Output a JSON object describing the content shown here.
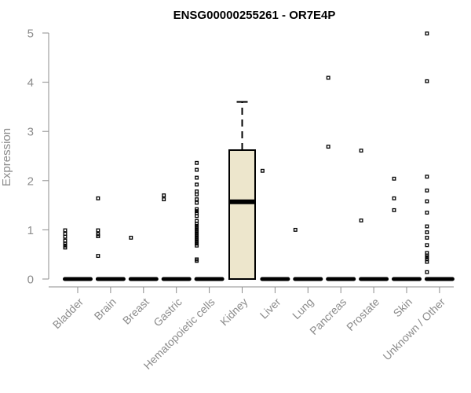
{
  "chart_data": {
    "type": "box",
    "title": "ENSG00000255261 - OR7E4P",
    "ylabel": "Expression",
    "xlabel": "",
    "ylim": [
      0,
      5
    ],
    "yticks": [
      "0",
      "1",
      "2",
      "3",
      "4",
      "5"
    ],
    "grid": false,
    "legend": "none",
    "box_fill": "#ede6cc",
    "categories": [
      "Bladder",
      "Brain",
      "Breast",
      "Gastric",
      "Hematopoietic cells",
      "Kidney",
      "Liver",
      "Lung",
      "Pancreas",
      "Prostate",
      "Skin",
      "Unknown / Other"
    ],
    "boxes": [
      {
        "name": "Bladder",
        "q1": 0,
        "median": 0,
        "q3": 0,
        "whisker_low": 0,
        "whisker_high": 0,
        "outliers": [
          0.64,
          0.68,
          0.72,
          0.78,
          0.86,
          0.92,
          0.99
        ]
      },
      {
        "name": "Brain",
        "q1": 0,
        "median": 0,
        "q3": 0,
        "whisker_low": 0,
        "whisker_high": 0,
        "outliers": [
          0.47,
          0.87,
          0.91,
          0.99,
          1.64
        ]
      },
      {
        "name": "Breast",
        "q1": 0,
        "median": 0,
        "q3": 0,
        "whisker_low": 0,
        "whisker_high": 0,
        "outliers": [
          0.84
        ]
      },
      {
        "name": "Gastric",
        "q1": 0,
        "median": 0,
        "q3": 0,
        "whisker_low": 0,
        "whisker_high": 0,
        "outliers": [
          1.62,
          1.7
        ]
      },
      {
        "name": "Hematopoietic cells",
        "q1": 0,
        "median": 0,
        "q3": 0,
        "whisker_low": 0,
        "whisker_high": 0,
        "outliers": [
          0.37,
          0.4,
          0.68,
          0.72,
          0.76,
          0.8,
          0.84,
          0.88,
          0.92,
          0.96,
          1.0,
          1.04,
          1.08,
          1.12,
          1.18,
          1.28,
          1.34,
          1.38,
          1.42,
          1.55,
          1.62,
          1.72,
          1.78,
          1.92,
          2.06,
          2.22,
          2.36
        ]
      },
      {
        "name": "Kidney",
        "q1": 0,
        "median": 1.57,
        "q3": 2.62,
        "whisker_low": 0,
        "whisker_high": 3.6,
        "outliers": []
      },
      {
        "name": "Liver",
        "q1": 0,
        "median": 0,
        "q3": 0,
        "whisker_low": 0,
        "whisker_high": 0,
        "outliers": [
          2.2
        ]
      },
      {
        "name": "Lung",
        "q1": 0,
        "median": 0,
        "q3": 0,
        "whisker_low": 0,
        "whisker_high": 0,
        "outliers": [
          1.0
        ]
      },
      {
        "name": "Pancreas",
        "q1": 0,
        "median": 0,
        "q3": 0,
        "whisker_low": 0,
        "whisker_high": 0,
        "outliers": [
          2.69,
          4.09
        ]
      },
      {
        "name": "Prostate",
        "q1": 0,
        "median": 0,
        "q3": 0,
        "whisker_low": 0,
        "whisker_high": 0,
        "outliers": [
          1.19,
          2.61
        ]
      },
      {
        "name": "Skin",
        "q1": 0,
        "median": 0,
        "q3": 0,
        "whisker_low": 0,
        "whisker_high": 0,
        "outliers": [
          1.4,
          1.64,
          2.04
        ]
      },
      {
        "name": "Unknown / Other",
        "q1": 0,
        "median": 0,
        "q3": 0,
        "whisker_low": 0,
        "whisker_high": 0,
        "outliers": [
          0.14,
          0.35,
          0.4,
          0.44,
          0.48,
          0.53,
          0.69,
          0.84,
          0.95,
          1.07,
          1.35,
          1.58,
          1.8,
          2.08,
          4.02,
          4.99
        ]
      }
    ]
  }
}
